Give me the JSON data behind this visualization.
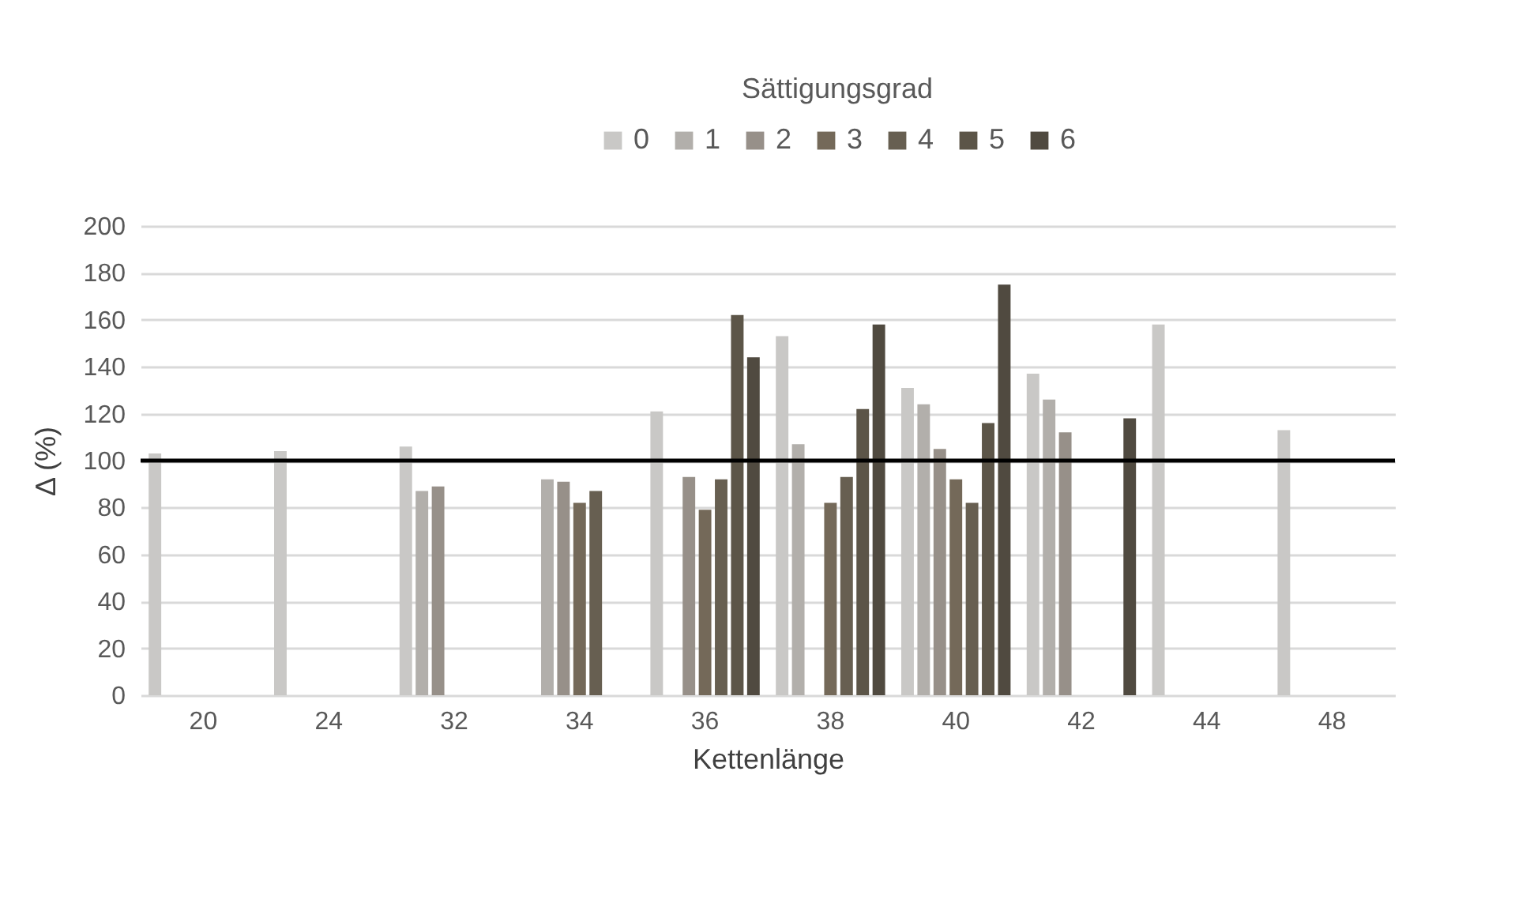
{
  "chart_data": {
    "type": "bar",
    "legend_title": "Sättigungsgrad",
    "xlabel": "Kettenlänge",
    "ylabel": "Δ (%)",
    "categories": [
      "20",
      "24",
      "32",
      "34",
      "36",
      "38",
      "40",
      "42",
      "44",
      "48"
    ],
    "series": [
      {
        "name": "0",
        "color": "#c9c8c6",
        "values": [
          103,
          104,
          106,
          null,
          121,
          153,
          131,
          137,
          158,
          113
        ]
      },
      {
        "name": "1",
        "color": "#b2afab",
        "values": [
          null,
          null,
          87,
          92,
          null,
          107,
          124,
          126,
          null,
          null
        ]
      },
      {
        "name": "2",
        "color": "#979089",
        "values": [
          null,
          null,
          89,
          91,
          93,
          null,
          105,
          112,
          null,
          null
        ]
      },
      {
        "name": "3",
        "color": "#746959",
        "values": [
          null,
          null,
          null,
          82,
          79,
          82,
          92,
          null,
          null,
          null
        ]
      },
      {
        "name": "4",
        "color": "#675f51",
        "values": [
          null,
          null,
          null,
          87,
          92,
          93,
          82,
          null,
          null,
          null
        ]
      },
      {
        "name": "5",
        "color": "#5c5548",
        "values": [
          null,
          null,
          null,
          null,
          162,
          122,
          116,
          null,
          null,
          null
        ]
      },
      {
        "name": "6",
        "color": "#504a40",
        "values": [
          null,
          null,
          null,
          null,
          144,
          158,
          175,
          118,
          null,
          null
        ]
      }
    ],
    "ylim": [
      0,
      200
    ],
    "yticks": [
      0,
      20,
      40,
      60,
      80,
      100,
      120,
      140,
      160,
      180,
      200
    ],
    "ref_lines": [
      {
        "axis": "y",
        "value": 100,
        "color": "#000000"
      }
    ],
    "grid": "y",
    "legend": "top"
  }
}
